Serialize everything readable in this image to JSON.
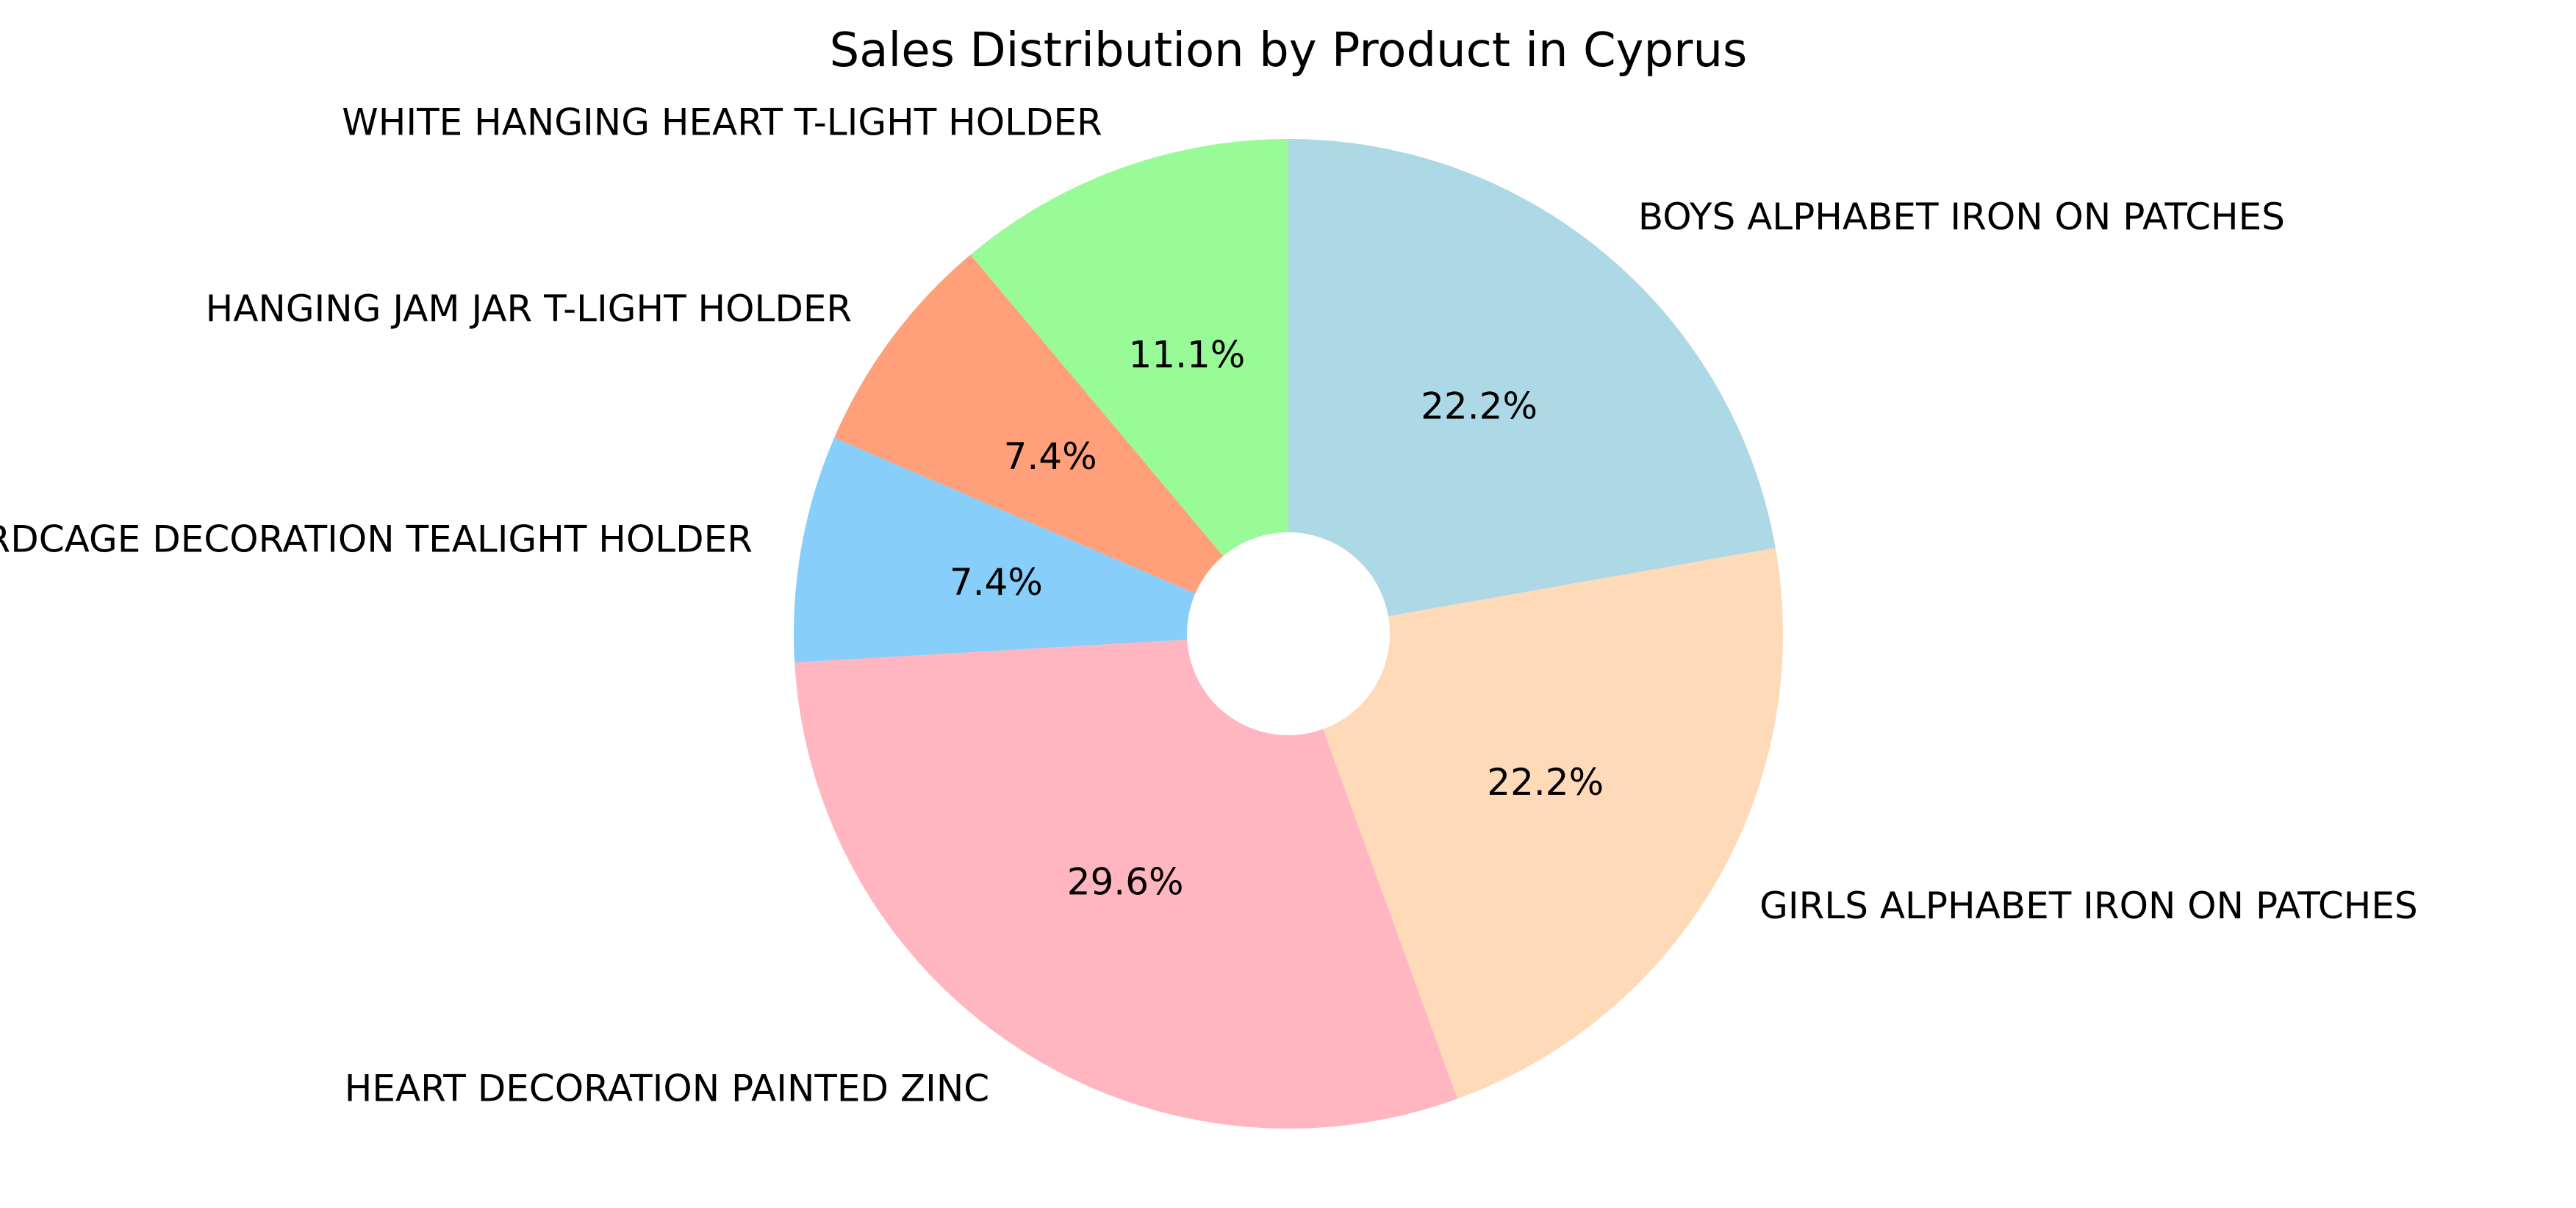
{
  "chart_data": {
    "type": "pie",
    "title": "Sales Distribution by Product in Cyprus",
    "donut_hole": true,
    "start_angle_deg": 90,
    "direction": "counterclockwise",
    "slices": [
      {
        "label": "WHITE HANGING HEART T-LIGHT HOLDER",
        "value": 3,
        "percent": "11.1%",
        "color": "#98FB98"
      },
      {
        "label": "HANGING JAM JAR T-LIGHT HOLDER",
        "value": 2,
        "percent": "7.4%",
        "color": "#FFA07A"
      },
      {
        "label": "BIRDCAGE DECORATION TEALIGHT HOLDER",
        "value": 2,
        "percent": "7.4%",
        "color": "#87CEFA"
      },
      {
        "label": "HEART DECORATION PAINTED ZINC",
        "value": 8,
        "percent": "29.6%",
        "color": "#FFB6C1"
      },
      {
        "label": "GIRLS ALPHABET IRON ON PATCHES",
        "value": 6,
        "percent": "22.2%",
        "color": "#FFDAB9"
      },
      {
        "label": "BOYS ALPHABET IRON ON PATCHES",
        "value": 6,
        "percent": "22.2%",
        "color": "#ADD8E6"
      }
    ]
  }
}
